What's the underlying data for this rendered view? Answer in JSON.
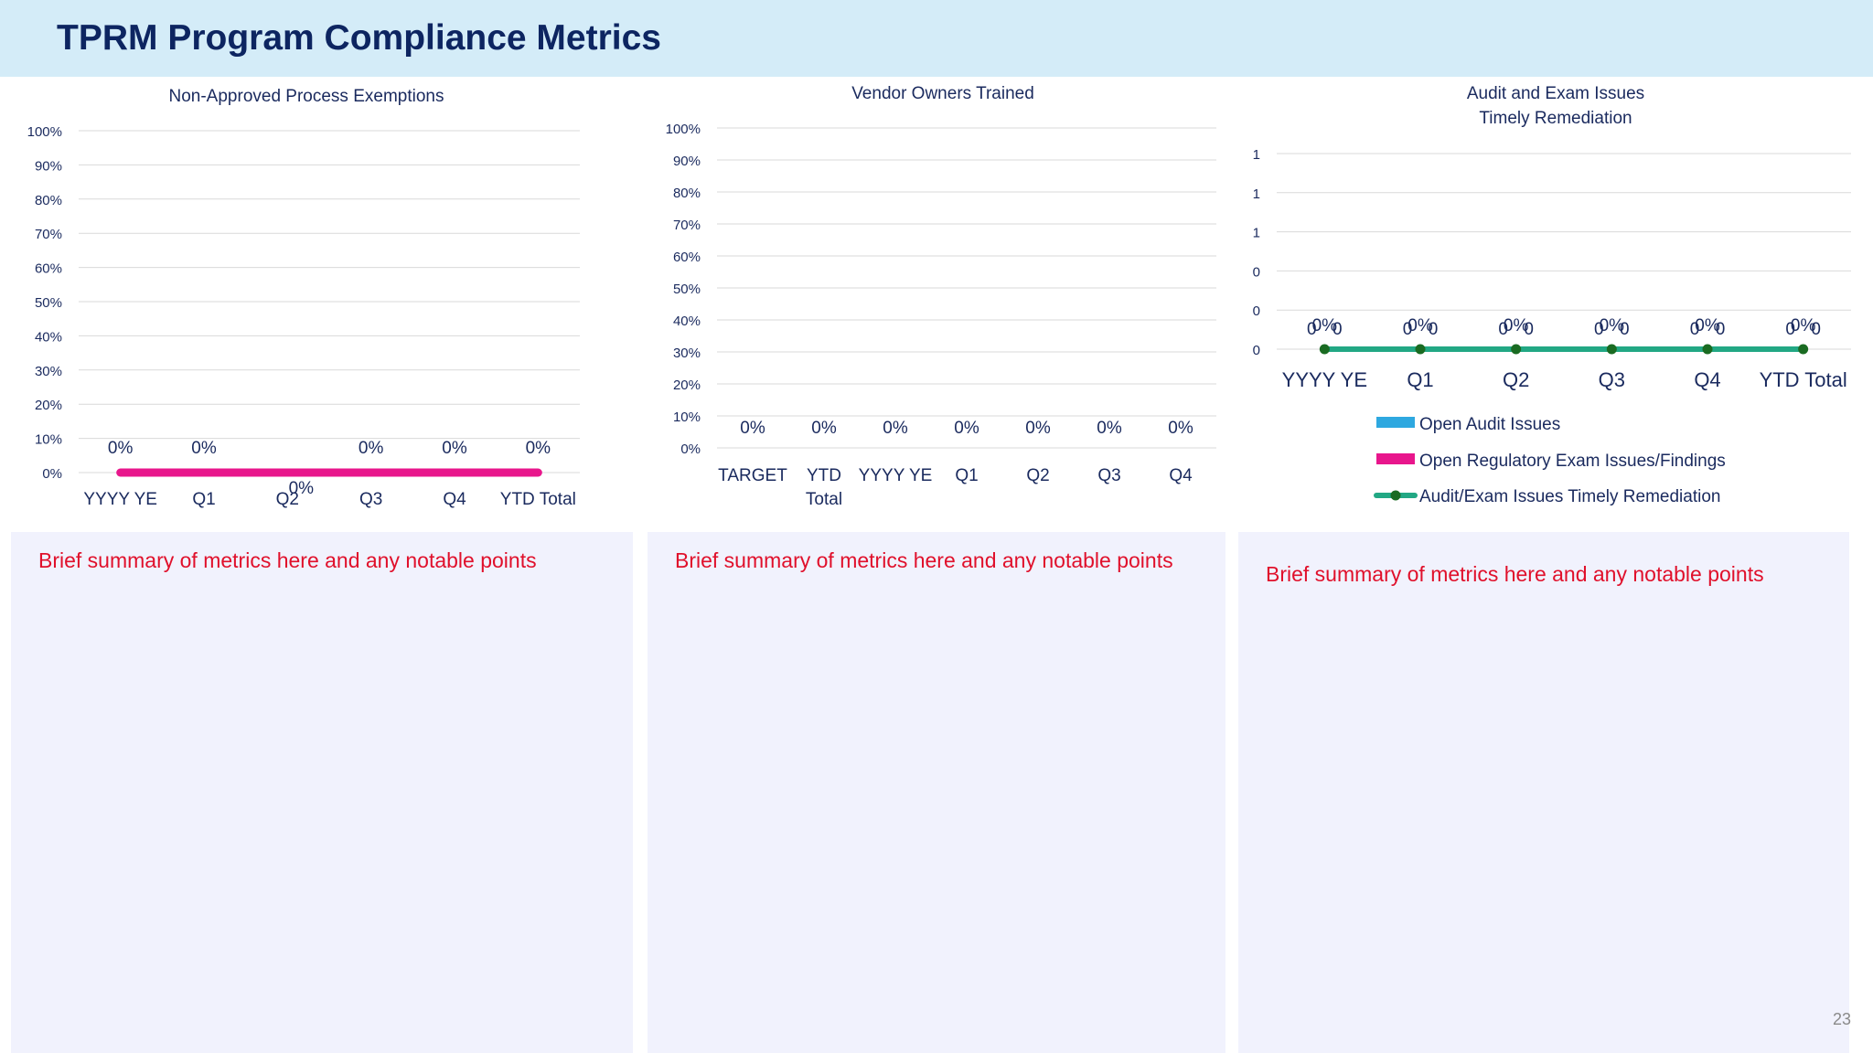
{
  "page": {
    "title": "TPRM Program Compliance Metrics",
    "page_number": "23"
  },
  "chart_data": [
    {
      "type": "line",
      "title": "Non-Approved Process Exemptions",
      "categories": [
        "YYYY YE",
        "Q1",
        "Q2",
        "Q3",
        "Q4",
        "YTD Total"
      ],
      "series": [
        {
          "values": [
            0,
            0,
            0,
            0,
            0,
            0
          ],
          "color": "#e8168c"
        }
      ],
      "data_labels": [
        "0%",
        "0%",
        "0%",
        "0%",
        "0%",
        "0%"
      ],
      "ylim": [
        0,
        1
      ],
      "yticks": [
        "0%",
        "10%",
        "20%",
        "30%",
        "40%",
        "50%",
        "60%",
        "70%",
        "80%",
        "90%",
        "100%"
      ],
      "grid": true
    },
    {
      "type": "bar",
      "title": "Vendor Owners Trained",
      "categories": [
        "TARGET",
        "YTD Total",
        "YYYY YE",
        "Q1",
        "Q2",
        "Q3",
        "Q4"
      ],
      "values": [
        0,
        0,
        0,
        0,
        0,
        0,
        0
      ],
      "data_labels": [
        "0%",
        "0%",
        "0%",
        "0%",
        "0%",
        "0%",
        "0%"
      ],
      "ylim": [
        0,
        1
      ],
      "yticks": [
        "0%",
        "10%",
        "20%",
        "30%",
        "40%",
        "50%",
        "60%",
        "70%",
        "80%",
        "90%",
        "100%"
      ],
      "grid": true
    },
    {
      "type": "bar",
      "title": "Audit and Exam Issues",
      "subtitle": "Timely Remediation",
      "categories": [
        "YYYY YE",
        "Q1",
        "Q2",
        "Q3",
        "Q4",
        "YTD Total"
      ],
      "series": [
        {
          "name": "Open Audit Issues",
          "type": "bar",
          "color": "#2ea8e0",
          "values": [
            0,
            0,
            0,
            0,
            0,
            0
          ]
        },
        {
          "name": "Open Regulatory Exam Issues/Findings",
          "type": "bar",
          "color": "#e8168c",
          "values": [
            0,
            0,
            0,
            0,
            0,
            0
          ]
        },
        {
          "name": "Audit/Exam Issues Timely Remediation",
          "type": "line",
          "color": "#22a884",
          "marker_color": "#1a6b22",
          "values": [
            0,
            0,
            0,
            0,
            0,
            0
          ]
        }
      ],
      "bar_labels": [
        "0",
        "0"
      ],
      "line_label": "0%",
      "yticks": [
        "0",
        "0",
        "0",
        "1",
        "1",
        "1"
      ],
      "grid": true,
      "legend": "bottom"
    }
  ],
  "panels": [
    {
      "summary": "Brief summary of metrics here and any notable points"
    },
    {
      "summary": "Brief summary of metrics here and any notable points"
    },
    {
      "summary": "Brief summary of metrics here and any notable points"
    }
  ]
}
